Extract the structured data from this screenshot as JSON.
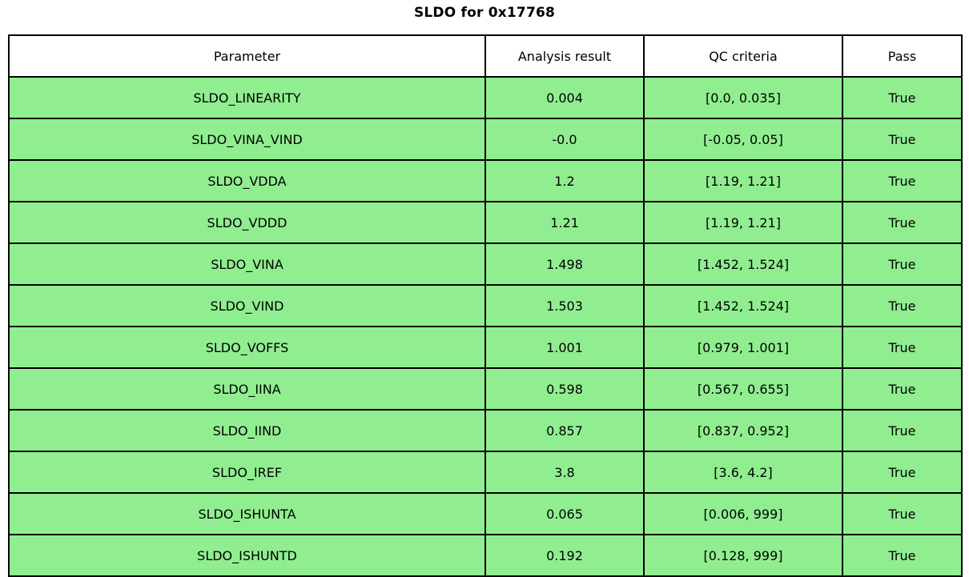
{
  "title": "SLDO for 0x17768",
  "colors": {
    "row_bg": "#90EE90",
    "header_bg": "#ffffff",
    "border": "#000000",
    "text": "#000000"
  },
  "table": {
    "columns": [
      "Parameter",
      "Analysis result",
      "QC criteria",
      "Pass"
    ],
    "rows": [
      {
        "parameter": "SLDO_LINEARITY",
        "result": "0.004",
        "criteria": "[0.0, 0.035]",
        "pass": "True"
      },
      {
        "parameter": "SLDO_VINA_VIND",
        "result": "-0.0",
        "criteria": "[-0.05, 0.05]",
        "pass": "True"
      },
      {
        "parameter": "SLDO_VDDA",
        "result": "1.2",
        "criteria": "[1.19, 1.21]",
        "pass": "True"
      },
      {
        "parameter": "SLDO_VDDD",
        "result": "1.21",
        "criteria": "[1.19, 1.21]",
        "pass": "True"
      },
      {
        "parameter": "SLDO_VINA",
        "result": "1.498",
        "criteria": "[1.452, 1.524]",
        "pass": "True"
      },
      {
        "parameter": "SLDO_VIND",
        "result": "1.503",
        "criteria": "[1.452, 1.524]",
        "pass": "True"
      },
      {
        "parameter": "SLDO_VOFFS",
        "result": "1.001",
        "criteria": "[0.979, 1.001]",
        "pass": "True"
      },
      {
        "parameter": "SLDO_IINA",
        "result": "0.598",
        "criteria": "[0.567, 0.655]",
        "pass": "True"
      },
      {
        "parameter": "SLDO_IIND",
        "result": "0.857",
        "criteria": "[0.837, 0.952]",
        "pass": "True"
      },
      {
        "parameter": "SLDO_IREF",
        "result": "3.8",
        "criteria": "[3.6, 4.2]",
        "pass": "True"
      },
      {
        "parameter": "SLDO_ISHUNTA",
        "result": "0.065",
        "criteria": "[0.006, 999]",
        "pass": "True"
      },
      {
        "parameter": "SLDO_ISHUNTD",
        "result": "0.192",
        "criteria": "[0.128, 999]",
        "pass": "True"
      }
    ]
  },
  "chart_data": {
    "type": "table",
    "title": "SLDO for 0x17768",
    "columns": [
      "Parameter",
      "Analysis result",
      "QC criteria",
      "Pass"
    ],
    "rows": [
      [
        "SLDO_LINEARITY",
        0.004,
        "[0.0, 0.035]",
        true
      ],
      [
        "SLDO_VINA_VIND",
        -0.0,
        "[-0.05, 0.05]",
        true
      ],
      [
        "SLDO_VDDA",
        1.2,
        "[1.19, 1.21]",
        true
      ],
      [
        "SLDO_VDDD",
        1.21,
        "[1.19, 1.21]",
        true
      ],
      [
        "SLDO_VINA",
        1.498,
        "[1.452, 1.524]",
        true
      ],
      [
        "SLDO_VIND",
        1.503,
        "[1.452, 1.524]",
        true
      ],
      [
        "SLDO_VOFFS",
        1.001,
        "[0.979, 1.001]",
        true
      ],
      [
        "SLDO_IINA",
        0.598,
        "[0.567, 0.655]",
        true
      ],
      [
        "SLDO_IIND",
        0.857,
        "[0.837, 0.952]",
        true
      ],
      [
        "SLDO_IREF",
        3.8,
        "[3.6, 4.2]",
        true
      ],
      [
        "SLDO_ISHUNTA",
        0.065,
        "[0.006, 999]",
        true
      ],
      [
        "SLDO_ISHUNTD",
        0.192,
        "[0.128, 999]",
        true
      ]
    ],
    "row_fill_color": "#90EE90",
    "header_fill_color": "#ffffff",
    "all_pass": true
  }
}
